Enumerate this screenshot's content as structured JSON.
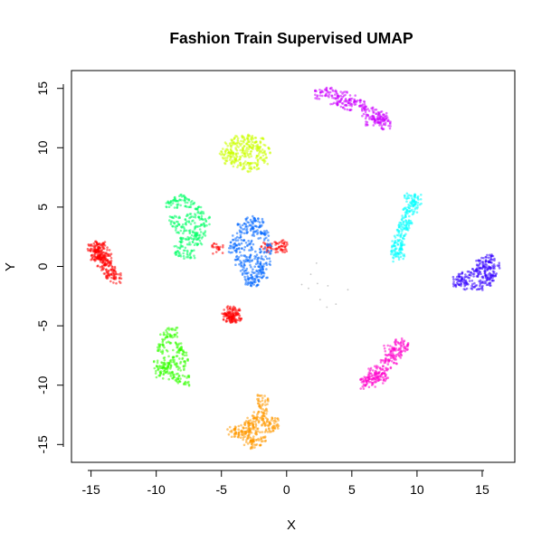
{
  "chart_data": {
    "type": "scatter",
    "title": "Fashion Train Supervised UMAP",
    "xlabel": "X",
    "ylabel": "Y",
    "xlim": [
      -16.5,
      17.5
    ],
    "ylim": [
      -16.5,
      16.5
    ],
    "x_ticks": [
      -15,
      -10,
      -5,
      0,
      5,
      10,
      15
    ],
    "y_ticks": [
      -15,
      -10,
      -5,
      0,
      5,
      10,
      15
    ],
    "x_tick_labels": [
      "-15",
      "-10",
      "-5",
      "0",
      "5",
      "10",
      "15"
    ],
    "y_tick_labels": [
      "-15",
      "-10",
      "-5",
      "0",
      "5",
      "10",
      "15"
    ],
    "grid": false,
    "legend": "none",
    "clusters": [
      {
        "color": "#FF0000",
        "center": [
          -14.2,
          0.5
        ],
        "points": [
          [
            -14.9,
            1.5
          ],
          [
            -14.6,
            1.7
          ],
          [
            -14.2,
            1.6
          ],
          [
            -14.0,
            1.2
          ],
          [
            -14.5,
            0.8
          ],
          [
            -14.2,
            0.4
          ],
          [
            -13.9,
            0.1
          ],
          [
            -13.6,
            -0.3
          ],
          [
            -13.4,
            -0.6
          ],
          [
            -13.1,
            -1.0
          ],
          [
            -14.7,
            1.0
          ],
          [
            -14.3,
            1.0
          ],
          [
            -13.8,
            0.6
          ]
        ]
      },
      {
        "color": "#FF0000",
        "center": [
          -4.2,
          -4.0
        ],
        "points": [
          [
            -4.5,
            -3.8
          ],
          [
            -4.3,
            -4.2
          ],
          [
            -4.0,
            -3.9
          ],
          [
            -4.2,
            -4.4
          ],
          [
            -4.4,
            -4.1
          ],
          [
            -3.9,
            -4.3
          ]
        ]
      },
      {
        "color": "#FF0000",
        "center": [
          -0.5,
          1.8
        ],
        "points": [
          [
            -0.5,
            1.8
          ],
          [
            -0.4,
            1.6
          ],
          [
            -5.3,
            1.5
          ],
          [
            -1.5,
            1.6
          ]
        ]
      },
      {
        "color": "#FF9900",
        "center": [
          -2.5,
          -13.2
        ],
        "points": [
          [
            -1.8,
            -11.2
          ],
          [
            -1.9,
            -12.0
          ],
          [
            -2.2,
            -12.6
          ],
          [
            -1.5,
            -13.0
          ],
          [
            -1.0,
            -13.2
          ],
          [
            -2.5,
            -13.4
          ],
          [
            -3.0,
            -13.6
          ],
          [
            -3.6,
            -13.8
          ],
          [
            -4.2,
            -13.9
          ],
          [
            -3.3,
            -14.2
          ],
          [
            -2.8,
            -14.6
          ],
          [
            -2.4,
            -14.9
          ],
          [
            -2.0,
            -14.3
          ],
          [
            -2.7,
            -13.2
          ],
          [
            -1.3,
            -13.5
          ]
        ]
      },
      {
        "color": "#CCFF00",
        "center": [
          -3.0,
          9.4
        ],
        "points": [
          [
            -4.7,
            9.5
          ],
          [
            -4.3,
            10.0
          ],
          [
            -3.8,
            10.6
          ],
          [
            -3.0,
            10.7
          ],
          [
            -2.2,
            10.5
          ],
          [
            -1.7,
            9.8
          ],
          [
            -1.9,
            9.0
          ],
          [
            -2.5,
            8.6
          ],
          [
            -3.2,
            8.4
          ],
          [
            -3.8,
            8.8
          ],
          [
            -4.3,
            9.1
          ],
          [
            -3.0,
            9.6
          ],
          [
            -2.6,
            10.1
          ],
          [
            -3.5,
            9.9
          ]
        ]
      },
      {
        "color": "#33FF00",
        "center": [
          -8.7,
          -7.7
        ],
        "points": [
          [
            -9.3,
            -6.0
          ],
          [
            -8.8,
            -5.6
          ],
          [
            -9.5,
            -7.0
          ],
          [
            -8.5,
            -6.8
          ],
          [
            -9.8,
            -8.2
          ],
          [
            -9.0,
            -8.0
          ],
          [
            -8.2,
            -8.4
          ],
          [
            -9.6,
            -9.0
          ],
          [
            -8.6,
            -9.3
          ],
          [
            -7.9,
            -9.6
          ],
          [
            -8.0,
            -7.5
          ],
          [
            -9.2,
            -8.6
          ]
        ]
      },
      {
        "color": "#00FF66",
        "center": [
          -7.6,
          3.2
        ],
        "points": [
          [
            -8.8,
            5.4
          ],
          [
            -8.2,
            5.6
          ],
          [
            -7.5,
            5.4
          ],
          [
            -6.8,
            4.6
          ],
          [
            -6.3,
            3.8
          ],
          [
            -6.6,
            3.0
          ],
          [
            -7.2,
            2.6
          ],
          [
            -7.8,
            2.0
          ],
          [
            -8.2,
            1.3
          ],
          [
            -7.5,
            1.0
          ],
          [
            -8.6,
            3.8
          ],
          [
            -8.1,
            3.2
          ],
          [
            -7.4,
            4.0
          ],
          [
            -6.9,
            2.2
          ]
        ]
      },
      {
        "color": "#0066FF",
        "center": [
          -2.8,
          1.0
        ],
        "points": [
          [
            -2.8,
            3.8
          ],
          [
            -2.2,
            3.6
          ],
          [
            -3.4,
            3.2
          ],
          [
            -3.9,
            2.2
          ],
          [
            -4.0,
            1.4
          ],
          [
            -3.5,
            0.5
          ],
          [
            -3.1,
            -0.3
          ],
          [
            -2.8,
            -1.2
          ],
          [
            -2.4,
            -1.3
          ],
          [
            -1.9,
            -0.6
          ],
          [
            -1.7,
            0.4
          ],
          [
            -1.6,
            1.5
          ],
          [
            -1.8,
            2.6
          ],
          [
            -2.3,
            3.0
          ],
          [
            -3.0,
            1.8
          ],
          [
            -2.6,
            0.8
          ],
          [
            -2.2,
            -0.2
          ]
        ]
      },
      {
        "color": "#00FFFF",
        "center": [
          8.9,
          3.0
        ],
        "points": [
          [
            9.5,
            5.8
          ],
          [
            9.9,
            5.6
          ],
          [
            9.4,
            4.8
          ],
          [
            9.2,
            3.9
          ],
          [
            8.9,
            3.0
          ],
          [
            8.7,
            2.2
          ],
          [
            8.4,
            1.4
          ],
          [
            8.6,
            0.8
          ],
          [
            9.6,
            5.0
          ],
          [
            9.0,
            3.5
          ],
          [
            8.5,
            1.8
          ]
        ]
      },
      {
        "color": "#CC00FF",
        "center": [
          5.0,
          13.5
        ],
        "points": [
          [
            2.6,
            14.5
          ],
          [
            3.4,
            14.6
          ],
          [
            4.2,
            14.3
          ],
          [
            5.0,
            14.0
          ],
          [
            5.6,
            13.6
          ],
          [
            6.2,
            13.1
          ],
          [
            6.8,
            12.8
          ],
          [
            7.4,
            12.6
          ],
          [
            7.6,
            12.0
          ],
          [
            7.2,
            12.3
          ],
          [
            6.5,
            12.2
          ],
          [
            4.6,
            13.6
          ],
          [
            3.8,
            14.0
          ]
        ]
      },
      {
        "color": "#3300FF",
        "center": [
          14.7,
          -0.6
        ],
        "points": [
          [
            15.4,
            0.6
          ],
          [
            15.9,
            0.2
          ],
          [
            15.7,
            -0.5
          ],
          [
            15.2,
            -1.2
          ],
          [
            14.6,
            -1.6
          ],
          [
            13.8,
            -1.5
          ],
          [
            13.2,
            -1.3
          ],
          [
            13.6,
            -0.9
          ],
          [
            14.3,
            -0.6
          ],
          [
            15.0,
            -0.2
          ],
          [
            15.5,
            -0.8
          ],
          [
            14.9,
            0.1
          ]
        ]
      },
      {
        "color": "#FF00CC",
        "center": [
          7.8,
          -8.2
        ],
        "points": [
          [
            8.6,
            -6.5
          ],
          [
            8.9,
            -6.9
          ],
          [
            8.4,
            -7.3
          ],
          [
            8.0,
            -7.8
          ],
          [
            7.6,
            -8.3
          ],
          [
            7.2,
            -8.8
          ],
          [
            6.8,
            -9.3
          ],
          [
            6.4,
            -9.7
          ],
          [
            6.0,
            -9.9
          ],
          [
            7.9,
            -7.1
          ],
          [
            7.4,
            -9.4
          ],
          [
            6.6,
            -9.0
          ]
        ]
      },
      {
        "color": "#999999",
        "center": [
          3.0,
          -1.0
        ],
        "points": [
          [
            1.5,
            -0.5
          ],
          [
            2.3,
            -1.0
          ],
          [
            3.6,
            -1.7
          ],
          [
            2.8,
            -3.2
          ],
          [
            3.9,
            -2.8
          ],
          [
            1.2,
            -1.4
          ],
          [
            2.5,
            0.5
          ],
          [
            4.5,
            -2.0
          ],
          [
            3.1,
            -3.8
          ],
          [
            1.8,
            -2.1
          ]
        ]
      }
    ]
  }
}
